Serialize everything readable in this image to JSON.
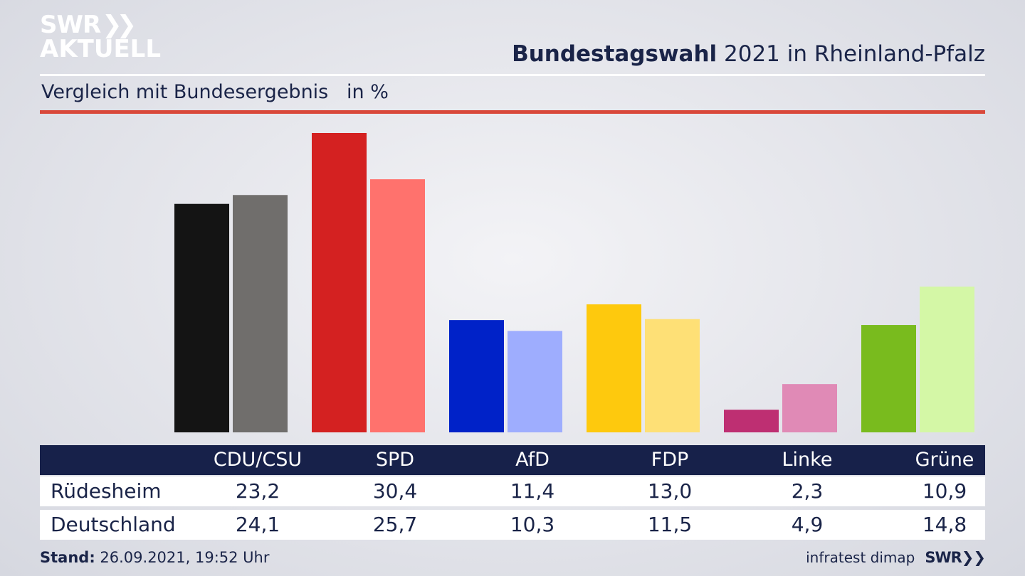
{
  "header": {
    "logo_line1": "SWR",
    "logo_line2": "AKTUELL",
    "title_bold": "Bundestagswahl",
    "title_rest": " 2021 in Rheinland-Pfalz",
    "subtitle": "Vergleich mit Bundesergebnis   in %"
  },
  "footer": {
    "stand_label": "Stand:",
    "stand_value": " 26.09.2021, 19:52 Uhr",
    "source": "infratest dimap",
    "brand": "SWR"
  },
  "table": {
    "row1_label": "Rüdesheim",
    "row2_label": "Deutschland"
  },
  "chart_data": {
    "type": "bar",
    "categories": [
      "CDU/CSU",
      "SPD",
      "AfD",
      "FDP",
      "Linke",
      "Grüne"
    ],
    "series": [
      {
        "name": "Rüdesheim",
        "values": [
          23.2,
          30.4,
          11.4,
          13.0,
          2.3,
          10.9
        ],
        "labels": [
          "23,2",
          "30,4",
          "11,4",
          "13,0",
          "2,3",
          "10,9"
        ],
        "colors": [
          "#141414",
          "#d42121",
          "#0022c8",
          "#fec90d",
          "#be2f72",
          "#79bb1e"
        ]
      },
      {
        "name": "Deutschland",
        "values": [
          24.1,
          25.7,
          10.3,
          11.5,
          4.9,
          14.8
        ],
        "labels": [
          "24,1",
          "25,7",
          "10,3",
          "11,5",
          "4,9",
          "14,8"
        ],
        "colors": [
          "#706e6c",
          "#ff726d",
          "#9eadfe",
          "#fee076",
          "#e08ab6",
          "#d4f7a6"
        ]
      }
    ],
    "title": "Bundestagswahl 2021 in Rheinland-Pfalz",
    "subtitle": "Vergleich mit Bundesergebnis   in %",
    "ylabel": "in %",
    "ylim": [
      0,
      30.4
    ],
    "grid": false,
    "legend": "table-below"
  }
}
